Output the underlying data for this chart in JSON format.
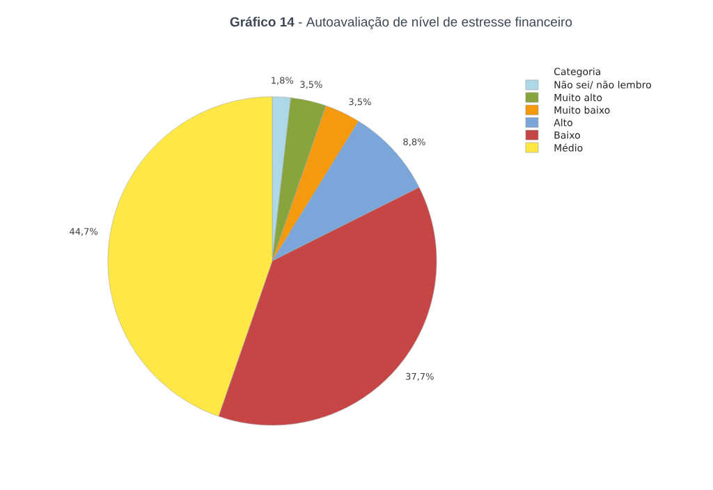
{
  "chart_data": {
    "type": "pie",
    "title": "**Gráfico 14** - Autoavaliação de nível de estresse financeiro",
    "legend_title": "Categoria",
    "legend": "top right",
    "categories": [
      "Não sei/ não lembro",
      "Muito alto",
      "Muito baixo",
      "Alto",
      "Baixo",
      "Médio"
    ],
    "values": [
      1.8,
      3.5,
      3.5,
      8.8,
      37.7,
      44.7
    ],
    "colors": [
      "#add8e6",
      "#88a43c",
      "#f59a0c",
      "#7ba6d9",
      "#c64545",
      "#ffe846"
    ],
    "value_labels": [
      "1,8%",
      "3,5%",
      "3,5%",
      "8,8%",
      "37,7%",
      "44,7%"
    ]
  }
}
